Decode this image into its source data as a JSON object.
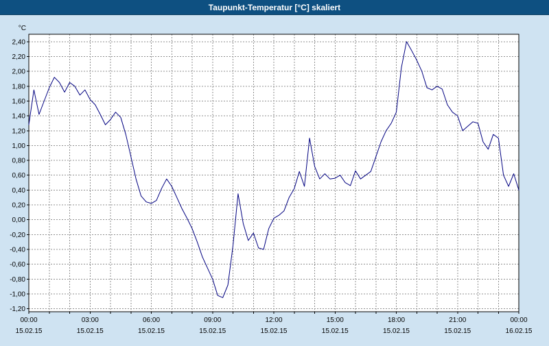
{
  "window": {
    "title": "Taupunkt-Temperatur [°C] skaliert"
  },
  "colors": {
    "titlebar_bg": "#0e5081",
    "titlebar_text": "#ffffff",
    "background": "#cfe3f2",
    "plot_bg": "#ffffff",
    "grid": "#8f8f8f",
    "frame": "#000000",
    "line": "#000080",
    "axis_text": "#000000"
  },
  "chart_data": {
    "type": "line",
    "title": "Taupunkt-Temperatur [°C] skaliert",
    "ylabel": "°C",
    "xlabel": "",
    "grid": true,
    "legend": "none",
    "ylim": [
      -1.24,
      2.5
    ],
    "xlim": [
      0,
      24
    ],
    "x_grid_interval_hours": 1,
    "y_ticks": [
      {
        "value": 2.4,
        "label": "2,40"
      },
      {
        "value": 2.2,
        "label": "2,20"
      },
      {
        "value": 2.0,
        "label": "2,00"
      },
      {
        "value": 1.8,
        "label": "1,80"
      },
      {
        "value": 1.6,
        "label": "1,60"
      },
      {
        "value": 1.4,
        "label": "1,40"
      },
      {
        "value": 1.2,
        "label": "1,20"
      },
      {
        "value": 1.0,
        "label": "1,00"
      },
      {
        "value": 0.8,
        "label": "0,80"
      },
      {
        "value": 0.6,
        "label": "0,60"
      },
      {
        "value": 0.4,
        "label": "0,40"
      },
      {
        "value": 0.2,
        "label": "0,20"
      },
      {
        "value": 0.0,
        "label": "0,00"
      },
      {
        "value": -0.2,
        "label": "-0,20"
      },
      {
        "value": -0.4,
        "label": "-0,40"
      },
      {
        "value": -0.6,
        "label": "-0,60"
      },
      {
        "value": -0.8,
        "label": "-0,80"
      },
      {
        "value": -1.0,
        "label": "-1,00"
      },
      {
        "value": -1.2,
        "label": "-1,20"
      }
    ],
    "x_ticks": [
      {
        "hour": 0,
        "label": "00:00",
        "date": "15.02.15"
      },
      {
        "hour": 3,
        "label": "03:00",
        "date": "15.02.15"
      },
      {
        "hour": 6,
        "label": "06:00",
        "date": "15.02.15"
      },
      {
        "hour": 9,
        "label": "09:00",
        "date": "15.02.15"
      },
      {
        "hour": 12,
        "label": "12:00",
        "date": "15.02.15"
      },
      {
        "hour": 15,
        "label": "15:00",
        "date": "15.02.15"
      },
      {
        "hour": 18,
        "label": "18:00",
        "date": "15.02.15"
      },
      {
        "hour": 21,
        "label": "21:00",
        "date": "15.02.15"
      },
      {
        "hour": 24,
        "label": "00:00",
        "date": "16.02.15"
      }
    ],
    "series": [
      {
        "name": "Taupunkt-Temperatur",
        "color": "#000080",
        "x_start_hour": 0,
        "x_step_hours": 0.25,
        "values": [
          1.28,
          1.75,
          1.42,
          1.6,
          1.78,
          1.92,
          1.85,
          1.72,
          1.85,
          1.8,
          1.68,
          1.75,
          1.62,
          1.55,
          1.42,
          1.28,
          1.35,
          1.45,
          1.38,
          1.15,
          0.85,
          0.55,
          0.32,
          0.24,
          0.22,
          0.26,
          0.42,
          0.55,
          0.45,
          0.3,
          0.15,
          0.02,
          -0.12,
          -0.3,
          -0.5,
          -0.65,
          -0.8,
          -1.02,
          -1.05,
          -0.88,
          -0.35,
          0.35,
          -0.05,
          -0.28,
          -0.18,
          -0.38,
          -0.4,
          -0.12,
          0.02,
          0.06,
          0.12,
          0.3,
          0.42,
          0.65,
          0.45,
          1.1,
          0.72,
          0.55,
          0.62,
          0.55,
          0.56,
          0.6,
          0.5,
          0.46,
          0.66,
          0.55,
          0.6,
          0.65,
          0.85,
          1.05,
          1.2,
          1.3,
          1.45,
          2.05,
          2.4,
          2.28,
          2.15,
          2.0,
          1.78,
          1.75,
          1.8,
          1.76,
          1.55,
          1.45,
          1.4,
          1.2,
          1.26,
          1.32,
          1.3,
          1.05,
          0.95,
          1.15,
          1.1,
          0.6,
          0.45,
          0.62,
          0.4
        ]
      }
    ]
  }
}
